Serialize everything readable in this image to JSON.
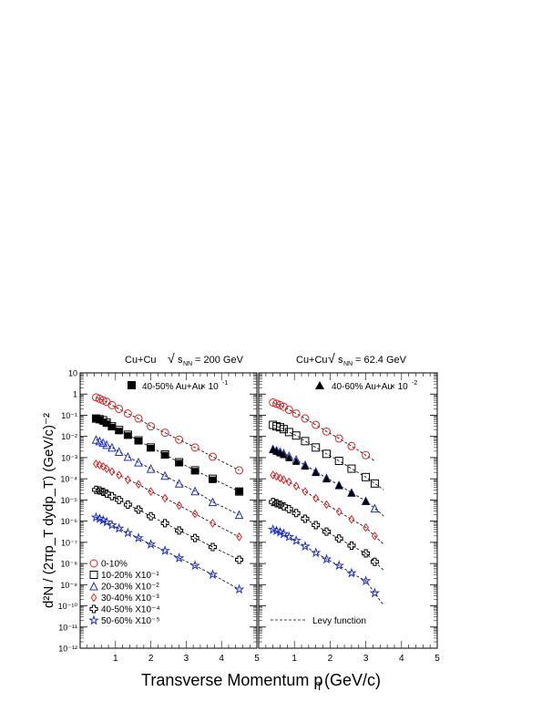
{
  "chart_data": [
    {
      "type": "scatter",
      "panel": "left",
      "title": "Cu+Cu  √s_NN = 200 GeV",
      "title_parts": {
        "system": "Cu+Cu",
        "sqrt": "√",
        "s": "s",
        "sub": "NN",
        "energy": "= 200 GeV"
      },
      "xlabel": "Transverse Momentum p_T (GeV/c)",
      "ylabel": "d²N / (2πp_T dydp_T) (GeV/c)⁻²",
      "xlim": [
        0,
        5
      ],
      "ylim": [
        1e-12,
        10
      ],
      "yscale": "log",
      "x_ticks": [
        "1",
        "2",
        "3",
        "4",
        "5"
      ],
      "y_ticks": [
        "10⁻¹²",
        "10⁻¹¹",
        "10⁻¹⁰",
        "10⁻⁹",
        "10⁻⁸",
        "10⁻⁷",
        "10⁻⁶",
        "10⁻⁵",
        "10⁻⁴",
        "10⁻³",
        "10⁻²",
        "10⁻¹",
        "1",
        "10"
      ],
      "series": [
        {
          "name": "0-10%",
          "marker": "circle",
          "color": "#e02020",
          "x": [
            0.45,
            0.55,
            0.65,
            0.75,
            0.9,
            1.1,
            1.35,
            1.65,
            2.0,
            2.4,
            2.8,
            3.25,
            3.75,
            4.5
          ],
          "y": [
            0.7,
            0.6,
            0.5,
            0.43,
            0.3,
            0.2,
            0.12,
            0.07,
            0.03,
            0.015,
            0.007,
            0.003,
            0.0011,
            0.00025
          ]
        },
        {
          "name": "10-20% X10⁻¹",
          "marker": "square",
          "color": "#000000",
          "x": [
            0.45,
            0.55,
            0.65,
            0.75,
            0.9,
            1.1,
            1.35,
            1.65,
            2.0,
            2.4,
            2.8,
            3.25,
            3.75,
            4.5
          ],
          "y": [
            0.07,
            0.065,
            0.058,
            0.045,
            0.03,
            0.02,
            0.012,
            0.0065,
            0.003,
            0.0014,
            0.0006,
            0.00025,
            0.0001,
            2.5e-05
          ]
        },
        {
          "name": "20-30% X10⁻²",
          "marker": "triangle",
          "color": "#2030c0",
          "x": [
            0.45,
            0.55,
            0.65,
            0.75,
            0.9,
            1.1,
            1.35,
            1.65,
            2.0,
            2.4,
            2.8,
            3.25,
            3.75,
            4.5
          ],
          "y": [
            0.007,
            0.006,
            0.005,
            0.004,
            0.003,
            0.0019,
            0.0011,
            0.0006,
            0.0003,
            0.00014,
            6e-05,
            2.6e-05,
            8e-06,
            2e-06
          ]
        },
        {
          "name": "30-40% X10⁻³",
          "marker": "diamond",
          "color": "#e02020",
          "x": [
            0.45,
            0.55,
            0.65,
            0.75,
            0.9,
            1.1,
            1.35,
            1.65,
            2.0,
            2.4,
            2.8,
            3.25,
            3.75,
            4.5
          ],
          "y": [
            0.0005,
            0.00045,
            0.00038,
            0.0003,
            0.00022,
            0.00015,
            9e-05,
            5.5e-05,
            2.5e-05,
            1.2e-05,
            5.5e-06,
            2.2e-06,
            8e-07,
            1.8e-07
          ]
        },
        {
          "name": "40-50% X10⁻⁴",
          "marker": "cross",
          "color": "#000000",
          "x": [
            0.45,
            0.55,
            0.65,
            0.75,
            0.9,
            1.1,
            1.35,
            1.65,
            2.0,
            2.4,
            2.8,
            3.25,
            3.75,
            4.5
          ],
          "y": [
            3e-05,
            2.8e-05,
            2.4e-05,
            2e-05,
            1.5e-05,
            1e-05,
            6e-06,
            3.5e-06,
            1.7e-06,
            8e-07,
            3.6e-07,
            1.6e-07,
            6e-08,
            1.5e-08
          ]
        },
        {
          "name": "50-60% X10⁻⁵",
          "marker": "star",
          "color": "#2030c0",
          "x": [
            0.45,
            0.55,
            0.65,
            0.75,
            0.9,
            1.1,
            1.35,
            1.65,
            2.0,
            2.4,
            2.8,
            3.25,
            3.75,
            4.5
          ],
          "y": [
            1.5e-06,
            1.3e-06,
            1.1e-06,
            9e-07,
            6.5e-07,
            4.5e-07,
            2.8e-07,
            1.6e-07,
            8e-08,
            4e-08,
            1.8e-08,
            8e-09,
            3e-09,
            6e-10
          ]
        },
        {
          "name": "40-50% Au+Au× 10⁻¹",
          "marker": "filled-square",
          "color": "#000000",
          "x": [
            0.45,
            0.55,
            0.65,
            0.75,
            0.9,
            1.1,
            1.35,
            1.65,
            2.0,
            2.4,
            2.8,
            3.25,
            3.75,
            4.5
          ],
          "y": [
            0.07,
            0.06,
            0.05,
            0.04,
            0.028,
            0.018,
            0.011,
            0.0062,
            0.0028,
            0.0013,
            0.00055,
            0.00023,
            9e-05,
            2.5e-05
          ]
        }
      ],
      "legend_top": "40-50% Au+Au× 10⁻¹",
      "legend_top_parts": {
        "text": "40-50% Au+Au",
        "times": "× 10",
        "exp": "-1"
      }
    },
    {
      "type": "scatter",
      "panel": "right",
      "title": "Cu+Cu √s_NN = 62.4 GeV",
      "title_parts": {
        "system": "Cu+Cu",
        "sqrt": "√",
        "s": "s",
        "sub": "NN",
        "energy": "= 62.4 GeV"
      },
      "xlim": [
        0,
        5
      ],
      "ylim": [
        1e-12,
        10
      ],
      "yscale": "log",
      "x_ticks": [
        "1",
        "2",
        "3",
        "4",
        "5"
      ],
      "series": [
        {
          "name": "0-10%",
          "marker": "circle",
          "color": "#e02020",
          "x": [
            0.4,
            0.5,
            0.6,
            0.7,
            0.85,
            1.05,
            1.3,
            1.6,
            1.9,
            2.25,
            2.6,
            3.0
          ],
          "y": [
            0.4,
            0.35,
            0.3,
            0.25,
            0.18,
            0.12,
            0.07,
            0.035,
            0.017,
            0.008,
            0.0035,
            0.0013
          ]
        },
        {
          "name": "10-20% X10⁻¹",
          "marker": "square",
          "color": "#000000",
          "x": [
            0.4,
            0.5,
            0.6,
            0.7,
            0.85,
            1.05,
            1.3,
            1.6,
            1.9,
            2.25,
            2.6,
            3.0,
            3.25
          ],
          "y": [
            0.035,
            0.03,
            0.027,
            0.022,
            0.016,
            0.011,
            0.006,
            0.003,
            0.0015,
            0.0007,
            0.0003,
            0.00012,
            6e-05
          ]
        },
        {
          "name": "20-30% X10⁻²",
          "marker": "triangle",
          "color": "#2030c0",
          "x": [
            0.4,
            0.5,
            0.6,
            0.7,
            0.85,
            1.05,
            1.3,
            1.6,
            1.9,
            2.25,
            2.6,
            3.0,
            3.25
          ],
          "y": [
            0.0025,
            0.0022,
            0.0019,
            0.0016,
            0.0012,
            0.0008,
            0.00045,
            0.00022,
            0.00011,
            5e-05,
            2.2e-05,
            9e-06,
            4e-06
          ]
        },
        {
          "name": "30-40% X10⁻³",
          "marker": "diamond",
          "color": "#e02020",
          "x": [
            0.4,
            0.5,
            0.6,
            0.7,
            0.85,
            1.05,
            1.3,
            1.6,
            1.9,
            2.25,
            2.6,
            3.0,
            3.25
          ],
          "y": [
            0.00015,
            0.00013,
            0.00011,
            9e-05,
            7e-05,
            4.5e-05,
            2.5e-05,
            1.2e-05,
            6e-06,
            2.8e-06,
            1.2e-06,
            5e-07,
            2e-07
          ]
        },
        {
          "name": "40-50% X10⁻⁴",
          "marker": "cross",
          "color": "#000000",
          "x": [
            0.4,
            0.5,
            0.6,
            0.7,
            0.85,
            1.05,
            1.3,
            1.6,
            1.9,
            2.25,
            2.6,
            3.0,
            3.25
          ],
          "y": [
            8e-06,
            7e-06,
            6e-06,
            5e-06,
            3.7e-06,
            2.4e-06,
            1.3e-06,
            6.5e-07,
            3.2e-07,
            1.5e-07,
            7e-08,
            3e-08,
            1.2e-08
          ]
        },
        {
          "name": "50-60% X10⁻⁵",
          "marker": "star",
          "color": "#2030c0",
          "x": [
            0.4,
            0.5,
            0.6,
            0.7,
            0.85,
            1.05,
            1.3,
            1.6,
            1.9,
            2.25,
            2.6,
            3.0,
            3.25
          ],
          "y": [
            4e-07,
            3.5e-07,
            3e-07,
            2.5e-07,
            1.8e-07,
            1.2e-07,
            6.5e-08,
            3.2e-08,
            1.6e-08,
            8e-09,
            3.5e-09,
            1.5e-09,
            4e-10
          ]
        },
        {
          "name": "40-60% Au+Au× 10⁻²",
          "marker": "filled-triangle",
          "color": "#000000",
          "x": [
            0.4,
            0.5,
            0.6,
            0.7,
            0.85,
            1.05,
            1.3,
            1.6,
            1.9,
            2.25,
            2.6,
            3.0
          ],
          "y": [
            0.0025,
            0.002,
            0.0017,
            0.0014,
            0.001,
            0.00068,
            0.0004,
            0.0002,
            0.0001,
            5e-05,
            2.2e-05,
            9e-06
          ]
        }
      ],
      "legend_top": "40-60% Au+Au× 10⁻²",
      "legend_top_parts": {
        "text": "40-60% Au+Au",
        "times": "× 10",
        "exp": "-2"
      },
      "fit_label": "Levy function"
    }
  ],
  "axis_title_x": {
    "main": "Transverse Momentum p",
    "sub": "T",
    "unit": " (GeV/c)"
  },
  "axis_title_y": "d²N / (2πp_T dydp_T) (GeV/c)⁻²",
  "legend_left": [
    "0-10%",
    "10-20% X10⁻¹",
    "20-30% X10⁻²",
    "30-40% X10⁻³",
    "40-50% X10⁻⁴",
    "50-60% X10⁻⁵"
  ]
}
